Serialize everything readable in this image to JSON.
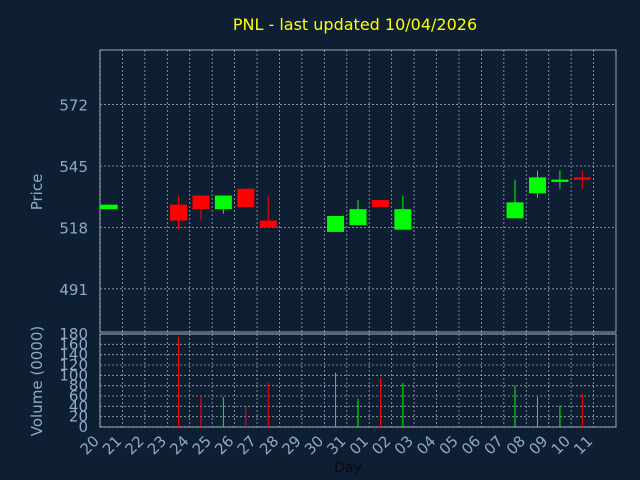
{
  "title": "PNL - last updated 10/04/2026",
  "colors": {
    "background": "#0f1f33",
    "frame": "#9aa8b8",
    "grid": "#c8d0da",
    "title": "#ffff00",
    "label": "#8fa8c8",
    "up": "#00ff00",
    "down": "#ff0000"
  },
  "chart_data": [
    {
      "type": "candlestick",
      "ylabel": "Price",
      "ylim": [
        472,
        596
      ],
      "yticks": [
        491,
        518,
        545,
        572
      ],
      "grid": true,
      "x_start_index": 0,
      "candles": [
        {
          "day": "20",
          "open": 526,
          "close": 528,
          "high": 528,
          "low": 526,
          "direction": "up"
        },
        {
          "day": "23",
          "open": 528,
          "close": 521,
          "high": 532,
          "low": 517,
          "direction": "down"
        },
        {
          "day": "24",
          "open": 532,
          "close": 526,
          "high": 532,
          "low": 521,
          "direction": "down"
        },
        {
          "day": "25",
          "open": 526,
          "close": 532,
          "high": 532,
          "low": 524,
          "direction": "up"
        },
        {
          "day": "26",
          "open": 535,
          "close": 527,
          "high": 535,
          "low": 527,
          "direction": "down"
        },
        {
          "day": "27",
          "open": 521,
          "close": 518,
          "high": 532,
          "low": 518,
          "direction": "down"
        },
        {
          "day": "30",
          "open": 516,
          "close": 523,
          "high": 523,
          "low": 516,
          "direction": "up"
        },
        {
          "day": "31",
          "open": 519,
          "close": 526,
          "high": 530,
          "low": 519,
          "direction": "up"
        },
        {
          "day": "01",
          "open": 530,
          "close": 527,
          "high": 530,
          "low": 527,
          "direction": "down"
        },
        {
          "day": "02",
          "open": 517,
          "close": 526,
          "high": 532,
          "low": 517,
          "direction": "up"
        },
        {
          "day": "07",
          "open": 522,
          "close": 529,
          "high": 539,
          "low": 522,
          "direction": "up"
        },
        {
          "day": "08",
          "open": 533,
          "close": 540,
          "high": 543,
          "low": 531,
          "direction": "up"
        },
        {
          "day": "09",
          "open": 538,
          "close": 539,
          "high": 543,
          "low": 535,
          "direction": "up"
        },
        {
          "day": "10",
          "open": 540,
          "close": 539,
          "high": 543,
          "low": 535,
          "direction": "down"
        }
      ]
    },
    {
      "type": "bar",
      "ylabel": "Volume (0000)",
      "xlabel": "Day",
      "ylim": [
        0,
        180
      ],
      "yticks": [
        0,
        20,
        40,
        60,
        80,
        100,
        120,
        140,
        160,
        180
      ],
      "grid": true,
      "categories": [
        "20",
        "21",
        "22",
        "23",
        "24",
        "25",
        "26",
        "27",
        "28",
        "29",
        "30",
        "31",
        "01",
        "02",
        "03",
        "04",
        "05",
        "06",
        "07",
        "08",
        "09",
        "10",
        "11"
      ],
      "bars": [
        {
          "day": "23",
          "value": 175,
          "direction": "down"
        },
        {
          "day": "24",
          "value": 62,
          "direction": "down"
        },
        {
          "day": "25",
          "value": 58,
          "direction": "up"
        },
        {
          "day": "26",
          "value": 40,
          "direction": "down"
        },
        {
          "day": "27",
          "value": 85,
          "direction": "down"
        },
        {
          "day": "30",
          "value": 105,
          "direction": "up"
        },
        {
          "day": "31",
          "value": 55,
          "direction": "up"
        },
        {
          "day": "01",
          "value": 95,
          "direction": "down"
        },
        {
          "day": "02",
          "value": 85,
          "direction": "up"
        },
        {
          "day": "07",
          "value": 80,
          "direction": "up"
        },
        {
          "day": "08",
          "value": 58,
          "direction": "up"
        },
        {
          "day": "09",
          "value": 42,
          "direction": "up"
        },
        {
          "day": "10",
          "value": 65,
          "direction": "down"
        }
      ]
    }
  ]
}
